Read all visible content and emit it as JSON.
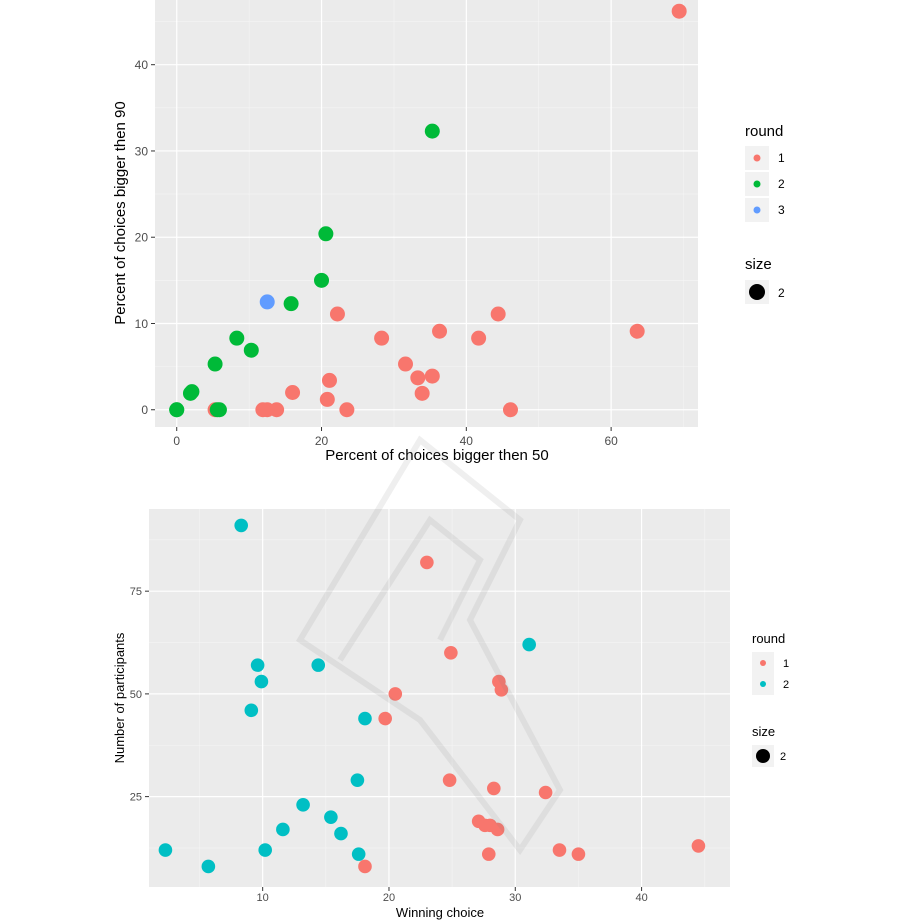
{
  "chart_data": [
    {
      "type": "scatter",
      "title": "",
      "xlabel": "Percent of choices bigger then 50",
      "ylabel": "Percent of choices bigger then 90",
      "xlim": [
        -3,
        72
      ],
      "ylim": [
        -2,
        47.5
      ],
      "xticks": [
        0,
        20,
        40,
        60
      ],
      "yticks": [
        0,
        10,
        20,
        30,
        40
      ],
      "grid": true,
      "legend_placement": "right",
      "legend": {
        "color_title": "round",
        "size_title": "size",
        "size_label": "2",
        "entries": [
          {
            "label": "1",
            "color": "#F8766D"
          },
          {
            "label": "2",
            "color": "#00BA38"
          },
          {
            "label": "3",
            "color": "#619CFF"
          }
        ]
      },
      "series": [
        {
          "name": "1",
          "color": "#F8766D",
          "points": [
            [
              69.4,
              46.2
            ],
            [
              63.6,
              9.1
            ],
            [
              44.4,
              11.1
            ],
            [
              41.7,
              8.3
            ],
            [
              46.1,
              0.0
            ],
            [
              36.3,
              9.1
            ],
            [
              35.3,
              3.9
            ],
            [
              33.3,
              3.7
            ],
            [
              33.9,
              1.9
            ],
            [
              31.6,
              5.3
            ],
            [
              28.3,
              8.3
            ],
            [
              22.2,
              11.1
            ],
            [
              21.1,
              3.4
            ],
            [
              20.8,
              1.2
            ],
            [
              23.5,
              0.0
            ],
            [
              16.0,
              2.0
            ],
            [
              13.8,
              0.0
            ],
            [
              12.5,
              0.0
            ],
            [
              11.9,
              0.0
            ],
            [
              5.3,
              0.0
            ]
          ]
        },
        {
          "name": "2",
          "color": "#00BA38",
          "points": [
            [
              35.3,
              32.3
            ],
            [
              20.6,
              20.4
            ],
            [
              20.0,
              15.0
            ],
            [
              15.8,
              12.3
            ],
            [
              8.3,
              8.3
            ],
            [
              10.3,
              6.9
            ],
            [
              5.3,
              5.3
            ],
            [
              2.1,
              2.1
            ],
            [
              1.9,
              1.9
            ],
            [
              0.0,
              0.0
            ],
            [
              5.9,
              0.0
            ],
            [
              5.6,
              0.0
            ],
            [
              0.0,
              0.0
            ]
          ]
        },
        {
          "name": "3",
          "color": "#619CFF",
          "points": [
            [
              12.5,
              12.5
            ]
          ]
        }
      ]
    },
    {
      "type": "scatter",
      "title": "",
      "xlabel": "Winning choice",
      "ylabel": "Number of participants",
      "xlim": [
        1,
        47
      ],
      "ylim": [
        3,
        95
      ],
      "xticks": [
        10,
        20,
        30,
        40
      ],
      "yticks": [
        25,
        50,
        75
      ],
      "grid": true,
      "legend_placement": "right",
      "legend": {
        "color_title": "round",
        "size_title": "size",
        "size_label": "2",
        "entries": [
          {
            "label": "1",
            "color": "#F8766D"
          },
          {
            "label": "2",
            "color": "#00BFC4"
          }
        ]
      },
      "series": [
        {
          "name": "1",
          "color": "#F8766D",
          "points": [
            [
              23.0,
              82
            ],
            [
              24.9,
              60
            ],
            [
              28.7,
              53
            ],
            [
              28.9,
              51
            ],
            [
              20.5,
              50
            ],
            [
              19.7,
              44
            ],
            [
              24.8,
              29
            ],
            [
              28.3,
              27
            ],
            [
              32.4,
              26
            ],
            [
              27.1,
              19
            ],
            [
              27.6,
              18
            ],
            [
              28.0,
              18
            ],
            [
              28.6,
              17
            ],
            [
              33.5,
              12
            ],
            [
              35.0,
              11
            ],
            [
              27.9,
              11
            ],
            [
              44.5,
              13
            ],
            [
              18.1,
              8
            ]
          ]
        },
        {
          "name": "2",
          "color": "#00BFC4",
          "points": [
            [
              8.3,
              91
            ],
            [
              31.1,
              62
            ],
            [
              9.6,
              57
            ],
            [
              14.4,
              57
            ],
            [
              9.9,
              53
            ],
            [
              9.1,
              46
            ],
            [
              18.1,
              44
            ],
            [
              17.5,
              29
            ],
            [
              13.2,
              23
            ],
            [
              15.4,
              20
            ],
            [
              11.6,
              17
            ],
            [
              16.2,
              16
            ],
            [
              2.3,
              12
            ],
            [
              10.2,
              12
            ],
            [
              17.6,
              11
            ],
            [
              5.7,
              8
            ]
          ]
        }
      ]
    }
  ]
}
